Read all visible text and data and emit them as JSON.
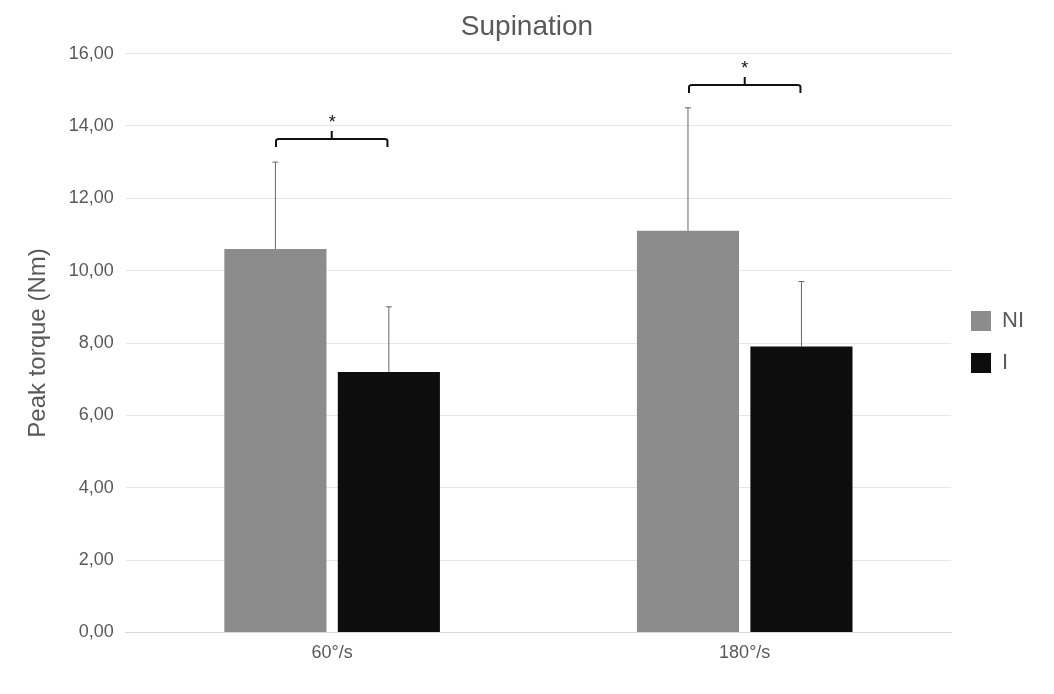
{
  "chart_data": {
    "type": "bar",
    "title": "Supination",
    "ylabel": "Peak torque (Nm)",
    "categories": [
      "60°/s",
      "180°/s"
    ],
    "series": [
      {
        "name": "NI",
        "color": "#8c8c8c",
        "values": [
          10.6,
          11.1
        ],
        "errors": [
          [
            10.6,
            13.0
          ],
          [
            11.1,
            14.5
          ]
        ]
      },
      {
        "name": "I",
        "color": "#0d0d0d",
        "values": [
          7.2,
          7.9
        ],
        "errors": [
          [
            7.2,
            9.0
          ],
          [
            7.9,
            9.7
          ]
        ]
      }
    ],
    "ylim": [
      0,
      16
    ],
    "yticks": [
      {
        "value": 0,
        "label": "0,00"
      },
      {
        "value": 2,
        "label": "2,00"
      },
      {
        "value": 4,
        "label": "4,00"
      },
      {
        "value": 6,
        "label": "6,00"
      },
      {
        "value": 8,
        "label": "8,00"
      },
      {
        "value": 10,
        "label": "10,00"
      },
      {
        "value": 12,
        "label": "12,00"
      },
      {
        "value": 14,
        "label": "14,00"
      },
      {
        "value": 16,
        "label": "16,00"
      }
    ],
    "annotations": [
      "*",
      "*"
    ],
    "grid": "y",
    "legend": "right"
  }
}
